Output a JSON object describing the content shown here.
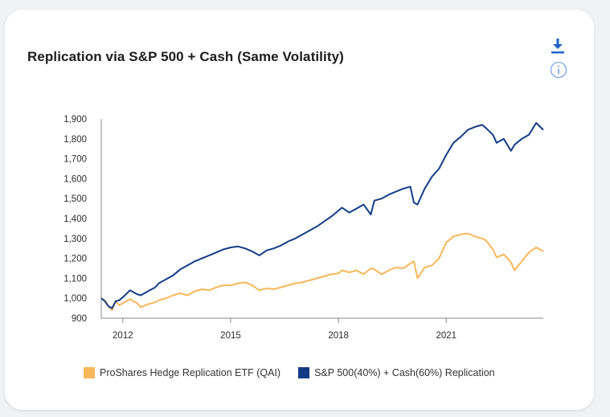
{
  "card": {
    "title": "Replication via S&P 500 + Cash (Same Volatility)",
    "download_icon": "download-icon",
    "info_icon": "info-icon"
  },
  "colors": {
    "qai": "#f8b75a",
    "replication": "#123d86",
    "axis": "#8a8a8a"
  },
  "chart_data": {
    "type": "line",
    "title": "Replication via S&P 500 + Cash (Same Volatility)",
    "xlabel": "",
    "ylabel": "",
    "xlim": [
      2011.4,
      2023.7
    ],
    "ylim": [
      900,
      1900
    ],
    "x_ticks": [
      {
        "value": 2012,
        "label": "2012"
      },
      {
        "value": 2015,
        "label": "2015"
      },
      {
        "value": 2018,
        "label": "2018"
      },
      {
        "value": 2021,
        "label": "2021"
      }
    ],
    "y_ticks": [
      {
        "value": 1900,
        "label": "1,900"
      },
      {
        "value": 1800,
        "label": "1,800"
      },
      {
        "value": 1700,
        "label": "1,700"
      },
      {
        "value": 1600,
        "label": "1,600"
      },
      {
        "value": 1500,
        "label": "1,500"
      },
      {
        "value": 1400,
        "label": "1,400"
      },
      {
        "value": 1300,
        "label": "1,300"
      },
      {
        "value": 1200,
        "label": "1,200"
      },
      {
        "value": 1100,
        "label": "1,100"
      },
      {
        "value": 1000,
        "label": "1,000"
      },
      {
        "value": 900,
        "label": "900"
      }
    ],
    "grid": false,
    "legend_position": "bottom",
    "series": [
      {
        "name": "ProShares Hedge Replication ETF (QAI)",
        "color": "#f8b75a",
        "x": [
          2011.4,
          2011.5,
          2011.6,
          2011.7,
          2011.8,
          2011.9,
          2012.0,
          2012.2,
          2012.4,
          2012.5,
          2012.7,
          2012.9,
          2013.0,
          2013.2,
          2013.4,
          2013.6,
          2013.8,
          2014.0,
          2014.2,
          2014.4,
          2014.6,
          2014.8,
          2015.0,
          2015.2,
          2015.4,
          2015.6,
          2015.8,
          2016.0,
          2016.2,
          2016.4,
          2016.6,
          2016.8,
          2017.0,
          2017.2,
          2017.4,
          2017.6,
          2017.8,
          2018.0,
          2018.1,
          2018.3,
          2018.5,
          2018.7,
          2018.9,
          2019.0,
          2019.2,
          2019.4,
          2019.6,
          2019.8,
          2020.0,
          2020.1,
          2020.2,
          2020.4,
          2020.6,
          2020.8,
          2021.0,
          2021.2,
          2021.4,
          2021.6,
          2021.8,
          2022.0,
          2022.1,
          2022.3,
          2022.4,
          2022.6,
          2022.8,
          2022.9,
          2023.1,
          2023.3,
          2023.5,
          2023.7
        ],
        "y": [
          1000,
          990,
          960,
          940,
          985,
          965,
          975,
          995,
          975,
          955,
          970,
          980,
          990,
          1000,
          1015,
          1025,
          1015,
          1035,
          1045,
          1040,
          1055,
          1065,
          1065,
          1075,
          1080,
          1065,
          1040,
          1050,
          1045,
          1055,
          1065,
          1075,
          1080,
          1090,
          1100,
          1110,
          1120,
          1125,
          1140,
          1130,
          1140,
          1120,
          1150,
          1145,
          1120,
          1140,
          1155,
          1150,
          1175,
          1185,
          1100,
          1155,
          1165,
          1200,
          1280,
          1310,
          1320,
          1325,
          1310,
          1300,
          1290,
          1245,
          1205,
          1220,
          1180,
          1140,
          1185,
          1230,
          1255,
          1235
        ]
      },
      {
        "name": "S&P 500(40%) + Cash(60%) Replication",
        "color": "#123d86",
        "x": [
          2011.4,
          2011.5,
          2011.6,
          2011.7,
          2011.8,
          2011.9,
          2012.0,
          2012.2,
          2012.4,
          2012.5,
          2012.7,
          2012.9,
          2013.0,
          2013.2,
          2013.4,
          2013.6,
          2013.8,
          2014.0,
          2014.2,
          2014.4,
          2014.6,
          2014.8,
          2015.0,
          2015.2,
          2015.4,
          2015.6,
          2015.8,
          2016.0,
          2016.2,
          2016.4,
          2016.6,
          2016.8,
          2017.0,
          2017.2,
          2017.4,
          2017.6,
          2017.8,
          2018.0,
          2018.1,
          2018.3,
          2018.5,
          2018.7,
          2018.9,
          2019.0,
          2019.2,
          2019.4,
          2019.6,
          2019.8,
          2020.0,
          2020.1,
          2020.2,
          2020.4,
          2020.6,
          2020.8,
          2021.0,
          2021.2,
          2021.4,
          2021.6,
          2021.8,
          2022.0,
          2022.1,
          2022.3,
          2022.4,
          2022.6,
          2022.8,
          2022.9,
          2023.1,
          2023.3,
          2023.5,
          2023.7
        ],
        "y": [
          1000,
          985,
          960,
          950,
          985,
          990,
          1005,
          1040,
          1020,
          1015,
          1035,
          1055,
          1075,
          1095,
          1115,
          1145,
          1165,
          1185,
          1200,
          1215,
          1230,
          1245,
          1255,
          1260,
          1250,
          1235,
          1215,
          1240,
          1250,
          1265,
          1285,
          1300,
          1320,
          1340,
          1360,
          1385,
          1410,
          1440,
          1455,
          1430,
          1450,
          1470,
          1420,
          1490,
          1500,
          1520,
          1535,
          1550,
          1560,
          1480,
          1470,
          1550,
          1610,
          1650,
          1720,
          1780,
          1810,
          1845,
          1860,
          1870,
          1855,
          1820,
          1780,
          1800,
          1740,
          1770,
          1800,
          1820,
          1880,
          1845
        ]
      }
    ]
  },
  "legend": {
    "items": [
      {
        "label": "ProShares Hedge Replication ETF (QAI)"
      },
      {
        "label": "S&P 500(40%) + Cash(60%) Replication"
      }
    ]
  }
}
